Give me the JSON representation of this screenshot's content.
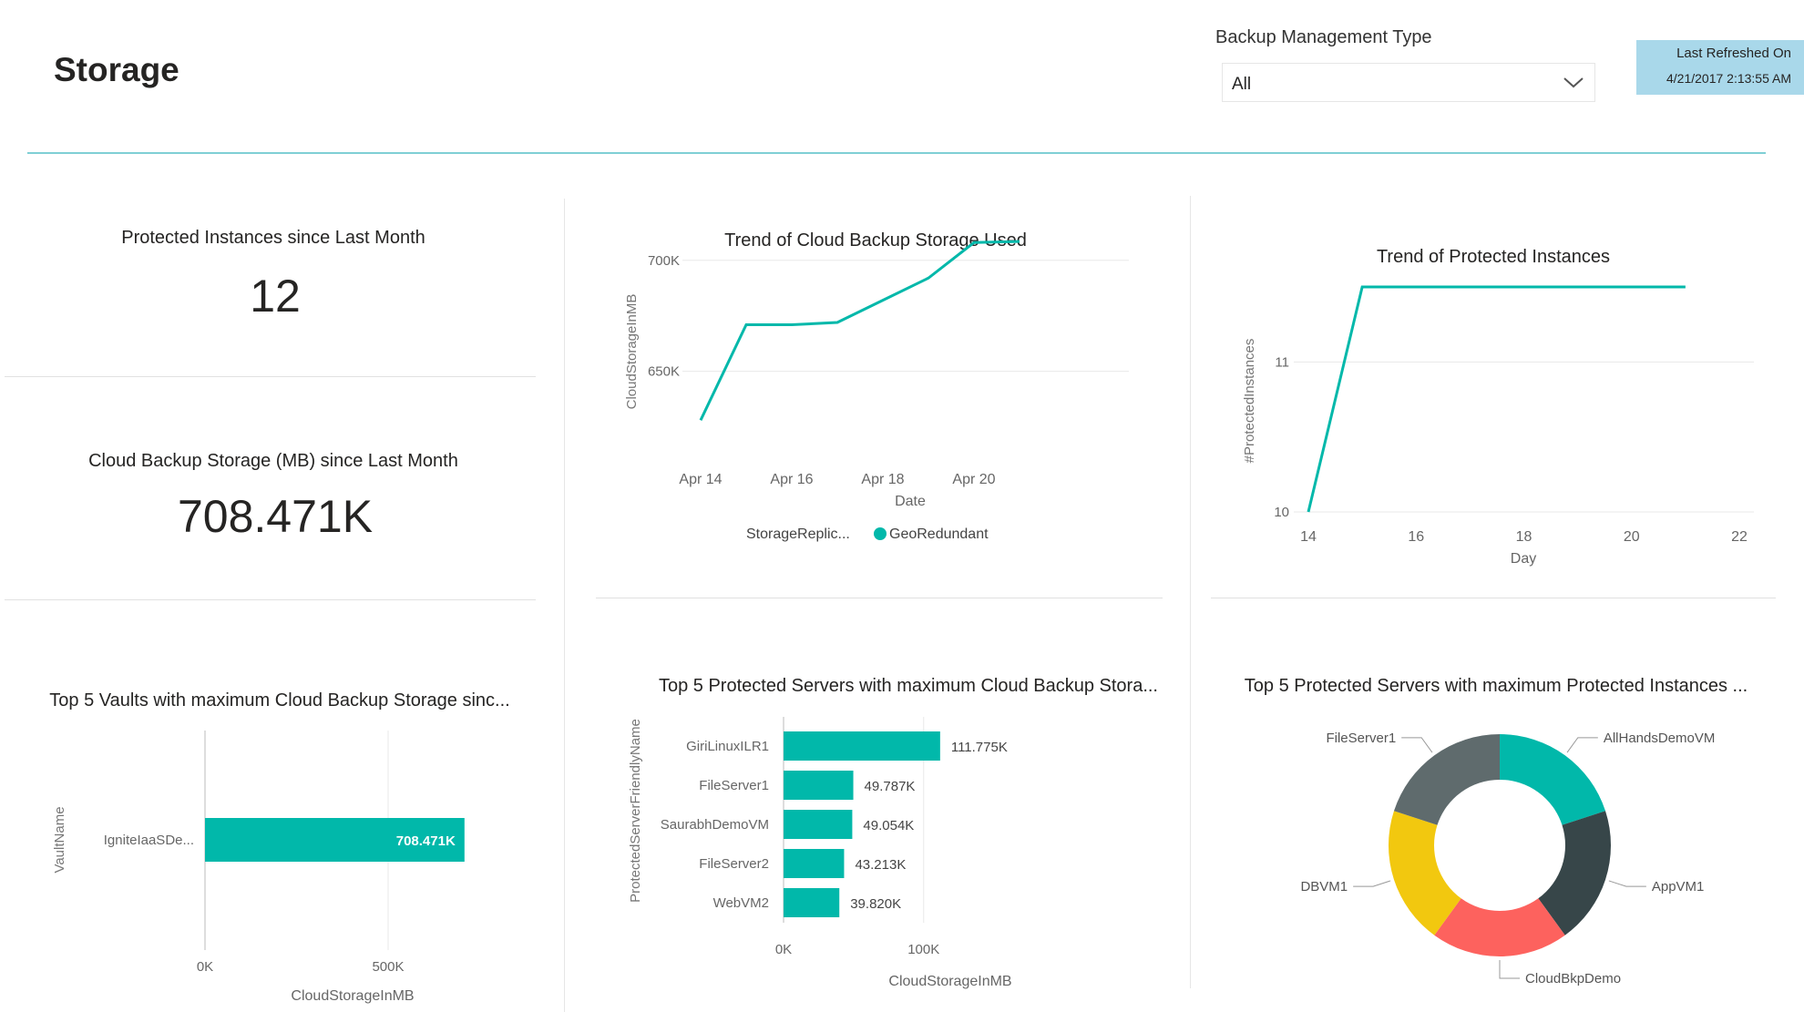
{
  "header": {
    "title": "Storage",
    "filter_label": "Backup Management Type",
    "filter_value": "All",
    "refresh_label": "Last Refreshed On",
    "refresh_value": "4/21/2017 2:13:55 AM"
  },
  "colors": {
    "teal": "#01b8aa",
    "rule": "#7fcfd5",
    "refresh_bg": "#a9d8ea",
    "dark": "#374649",
    "grey": "#5f6b6d",
    "yellow": "#f2c80f",
    "red": "#fd625e"
  },
  "cards": {
    "protected": {
      "title": "Protected Instances since Last Month",
      "value": "12"
    },
    "storage": {
      "title": "Cloud Backup Storage (MB) since Last Month",
      "value": "708.471K"
    }
  },
  "chart_data": [
    {
      "id": "cloud-storage-trend",
      "type": "line",
      "title": "Trend of Cloud Backup Storage Used",
      "xlabel": "Date",
      "ylabel": "CloudStorageInMB",
      "x_ticks": [
        "Apr 14",
        "Apr 16",
        "Apr 18",
        "Apr 20"
      ],
      "y_ticks": [
        "650K",
        "700K"
      ],
      "ylim": [
        615000,
        720000
      ],
      "legend_title": "StorageReplic...",
      "series": [
        {
          "name": "GeoRedundant",
          "x": [
            "2017-04-14",
            "2017-04-15",
            "2017-04-16",
            "2017-04-17",
            "2017-04-18",
            "2017-04-19",
            "2017-04-20",
            "2017-04-21"
          ],
          "values": [
            628000,
            671000,
            671000,
            672000,
            682000,
            692000,
            708000,
            708471
          ]
        }
      ]
    },
    {
      "id": "protected-instances-trend",
      "type": "line",
      "title": "Trend of Protected Instances",
      "xlabel": "Day",
      "ylabel": "#ProtectedInstances",
      "x_ticks": [
        "14",
        "16",
        "18",
        "20",
        "22"
      ],
      "y_ticks": [
        "10",
        "11"
      ],
      "xlim": [
        14,
        22
      ],
      "ylim": [
        10,
        11.5
      ],
      "series": [
        {
          "x": [
            14,
            15,
            21
          ],
          "values": [
            10,
            11.5,
            11.5
          ]
        }
      ]
    },
    {
      "id": "top-vaults",
      "type": "bar",
      "orientation": "horizontal",
      "title": "Top 5 Vaults with maximum Cloud Backup Storage sinc...",
      "xlabel": "CloudStorageInMB",
      "ylabel": "VaultName",
      "x_ticks": [
        "0K",
        "500K"
      ],
      "xlim": [
        0,
        1000000
      ],
      "categories": [
        "IgniteIaaSDe..."
      ],
      "values": [
        708471
      ],
      "labels": [
        "708.471K"
      ]
    },
    {
      "id": "top-servers-storage",
      "type": "bar",
      "orientation": "horizontal",
      "title": "Top 5 Protected Servers with maximum Cloud Backup Stora...",
      "xlabel": "CloudStorageInMB",
      "ylabel": "ProtectedServerFriendlyName",
      "x_ticks": [
        "0K",
        "100K"
      ],
      "xlim": [
        0,
        160000
      ],
      "categories": [
        "GiriLinuxILR1",
        "FileServer1",
        "SaurabhDemoVM",
        "FileServer2",
        "WebVM2"
      ],
      "values": [
        111775,
        49787,
        49054,
        43213,
        39820
      ],
      "labels": [
        "111.775K",
        "49.787K",
        "49.054K",
        "43.213K",
        "39.820K"
      ]
    },
    {
      "id": "top-servers-instances",
      "type": "pie",
      "donut": true,
      "title": "Top 5 Protected Servers with maximum Protected Instances ...",
      "slices": [
        {
          "label": "AllHandsDemoVM",
          "value": 1,
          "color": "#01b8aa"
        },
        {
          "label": "AppVM1",
          "value": 1,
          "color": "#374649"
        },
        {
          "label": "CloudBkpDemo",
          "value": 1,
          "color": "#fd625e"
        },
        {
          "label": "DBVM1",
          "value": 1,
          "color": "#f2c80f"
        },
        {
          "label": "FileServer1",
          "value": 1,
          "color": "#5f6b6d"
        }
      ]
    }
  ]
}
